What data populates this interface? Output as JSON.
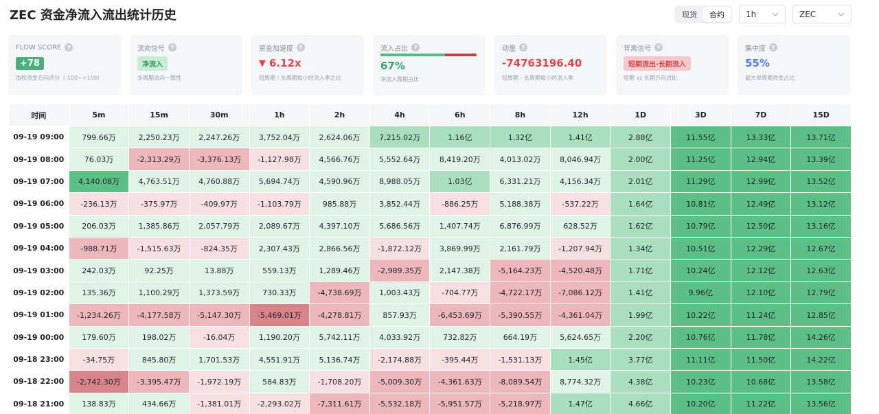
{
  "header": {
    "title": "ZEC 资金净流入流出统计历史",
    "market_tabs": [
      "现货",
      "合约"
    ],
    "active_market": "合约",
    "interval": "1h",
    "coin": "ZEC"
  },
  "metrics": [
    {
      "label": "FLOW SCORE",
      "value": "+78",
      "sub": "加权资金方向评分（-100~+100）",
      "style": "badge-green"
    },
    {
      "label": "流向信号",
      "value": "净流入",
      "sub": "多周期流向一致性",
      "style": "tag-green"
    },
    {
      "label": "资金加速度",
      "value": "6.12x",
      "sub": "短周期 / 长周期每小时流入率之比",
      "style": "val-red",
      "arrow": "▼"
    },
    {
      "label": "流入占比",
      "value": "67%",
      "sub": "净流入周期占比",
      "style": "val-green",
      "inflow_ratio": 0.67
    },
    {
      "label": "动量",
      "value": "-74763196.40",
      "sub": "短周期 - 长周期每小时流入率",
      "style": "val-red"
    },
    {
      "label": "背离信号",
      "value": "短期流出·长期流入",
      "sub": "短期 vs 长期方向对比",
      "style": "tag-red"
    },
    {
      "label": "集中度",
      "value": "55%",
      "sub": "最大单周期资金占比",
      "style": "val-blue"
    }
  ],
  "colors": {
    "pos_light": "#dff3e6",
    "pos_mid": "#a9dfbf",
    "pos_strong": "#5cbf86",
    "neg_light": "#f8dfe1",
    "neg_mid": "#eeb7bb",
    "neg_strong": "#d98489"
  },
  "table": {
    "columns": [
      "时间",
      "5m",
      "15m",
      "30m",
      "1h",
      "2h",
      "4h",
      "6h",
      "8h",
      "12h",
      "1D",
      "3D",
      "7D",
      "15D"
    ],
    "rows": [
      {
        "time": "09-19 09:00",
        "cells": [
          "799.66万",
          "2,250.23万",
          "2,247.26万",
          "3,752.04万",
          "2,624.06万",
          "7,215.02万",
          "1.16亿",
          "1.32亿",
          "1.41亿",
          "2.88亿",
          "11.55亿",
          "13.33亿",
          "13.71亿"
        ],
        "levels": [
          1,
          1,
          1,
          1,
          1,
          2,
          2,
          2,
          2,
          2,
          3,
          3,
          3
        ]
      },
      {
        "time": "09-19 08:00",
        "cells": [
          "76.03万",
          "-2,313.29万",
          "-3,376.13万",
          "-1,127.98万",
          "4,566.76万",
          "5,552.64万",
          "8,419.20万",
          "4,013.02万",
          "8,046.94万",
          "2.00亿",
          "11.25亿",
          "12.94亿",
          "13.39亿"
        ],
        "levels": [
          1,
          -2,
          -2,
          -1,
          1,
          1,
          1,
          1,
          1,
          2,
          3,
          3,
          3
        ]
      },
      {
        "time": "09-19 07:00",
        "cells": [
          "4,140.08万",
          "4,763.51万",
          "4,760.88万",
          "5,694.74万",
          "4,590.96万",
          "8,988.05万",
          "1.03亿",
          "6,331.21万",
          "4,156.34万",
          "2.01亿",
          "11.29亿",
          "12.99亿",
          "13.52亿"
        ],
        "levels": [
          3,
          1,
          1,
          1,
          1,
          1,
          2,
          1,
          1,
          2,
          3,
          3,
          3
        ]
      },
      {
        "time": "09-19 06:00",
        "cells": [
          "-236.13万",
          "-375.97万",
          "-409.97万",
          "-1,103.79万",
          "985.88万",
          "3,852.44万",
          "-886.25万",
          "5,188.38万",
          "-537.22万",
          "1.64亿",
          "10.81亿",
          "12.49亿",
          "13.12亿"
        ],
        "levels": [
          -1,
          -1,
          -1,
          -1,
          1,
          1,
          -1,
          1,
          -1,
          2,
          3,
          3,
          3
        ]
      },
      {
        "time": "09-19 05:00",
        "cells": [
          "206.03万",
          "1,385.86万",
          "2,057.79万",
          "2,089.67万",
          "4,397.10万",
          "5,686.56万",
          "1,407.74万",
          "6,876.99万",
          "628.52万",
          "1.62亿",
          "10.79亿",
          "12.50亿",
          "13.16亿"
        ],
        "levels": [
          1,
          1,
          1,
          1,
          1,
          1,
          1,
          1,
          1,
          2,
          3,
          3,
          3
        ]
      },
      {
        "time": "09-19 04:00",
        "cells": [
          "-988.71万",
          "-1,515.63万",
          "-824.35万",
          "2,307.43万",
          "2,866.56万",
          "-1,872.12万",
          "3,869.99万",
          "2,161.79万",
          "-1,207.94万",
          "1.34亿",
          "10.51亿",
          "12.29亿",
          "12.67亿"
        ],
        "levels": [
          -2,
          -1,
          -1,
          1,
          1,
          -1,
          1,
          1,
          -1,
          2,
          3,
          3,
          3
        ]
      },
      {
        "time": "09-19 03:00",
        "cells": [
          "242.03万",
          "92.25万",
          "13.88万",
          "559.13万",
          "1,289.46万",
          "-2,989.35万",
          "2,147.38万",
          "-5,164.23万",
          "-4,520.48万",
          "1.71亿",
          "10.24亿",
          "12.12亿",
          "12.63亿"
        ],
        "levels": [
          1,
          1,
          1,
          1,
          1,
          -2,
          1,
          -2,
          -2,
          2,
          3,
          3,
          3
        ]
      },
      {
        "time": "09-19 02:00",
        "cells": [
          "135.36万",
          "1,100.29万",
          "1,373.59万",
          "730.33万",
          "-4,738.69万",
          "1,003.43万",
          "-704.77万",
          "-4,722.17万",
          "-7,086.12万",
          "1.41亿",
          "9.96亿",
          "12.10亿",
          "12.79亿"
        ],
        "levels": [
          1,
          1,
          1,
          1,
          -2,
          1,
          -1,
          -2,
          -2,
          2,
          3,
          3,
          3
        ]
      },
      {
        "time": "09-19 01:00",
        "cells": [
          "-1,234.26万",
          "-4,177.58万",
          "-5,147.30万",
          "-5,469.01万",
          "-4,278.81万",
          "857.93万",
          "-6,453.69万",
          "-5,390.55万",
          "-4,361.04万",
          "1.99亿",
          "10.22亿",
          "11.24亿",
          "12.85亿"
        ],
        "levels": [
          -2,
          -2,
          -2,
          -3,
          -2,
          1,
          -2,
          -2,
          -2,
          2,
          3,
          3,
          3
        ]
      },
      {
        "time": "09-19 00:00",
        "cells": [
          "179.60万",
          "198.02万",
          "-16.04万",
          "1,190.20万",
          "5,742.11万",
          "4,033.92万",
          "732.82万",
          "664.19万",
          "5,624.65万",
          "2.20亿",
          "10.76亿",
          "11.78亿",
          "14.26亿"
        ],
        "levels": [
          1,
          1,
          -1,
          1,
          1,
          1,
          1,
          1,
          1,
          2,
          3,
          3,
          3
        ]
      },
      {
        "time": "09-18 23:00",
        "cells": [
          "-34.75万",
          "845.80万",
          "1,701.53万",
          "4,551.91万",
          "5,136.74万",
          "-2,174.88万",
          "-395.44万",
          "-1,531.13万",
          "1.45亿",
          "3.77亿",
          "11.11亿",
          "11.50亿",
          "14.22亿"
        ],
        "levels": [
          -1,
          1,
          1,
          1,
          1,
          -1,
          -1,
          -1,
          2,
          2,
          3,
          3,
          3
        ]
      },
      {
        "time": "09-18 22:00",
        "cells": [
          "-2,742.30万",
          "-3,395.47万",
          "-1,972.19万",
          "584.83万",
          "-1,708.20万",
          "-5,009.30万",
          "-4,361.63万",
          "-8,089.54万",
          "8,774.32万",
          "4.38亿",
          "10.23亿",
          "10.68亿",
          "13.58亿"
        ],
        "levels": [
          -3,
          -2,
          -1,
          1,
          -1,
          -2,
          -2,
          -2,
          1,
          2,
          3,
          3,
          3
        ]
      },
      {
        "time": "09-18 21:00",
        "cells": [
          "138.83万",
          "434.66万",
          "-1,381.01万",
          "-2,293.02万",
          "-7,311.61万",
          "-5,532.18万",
          "-5,951.57万",
          "-5,218.97万",
          "1.47亿",
          "4.66亿",
          "10.20亿",
          "11.22亿",
          "13.56亿"
        ],
        "levels": [
          1,
          1,
          -1,
          -1,
          -2,
          -2,
          -2,
          -2,
          2,
          2,
          3,
          3,
          3
        ]
      }
    ]
  }
}
